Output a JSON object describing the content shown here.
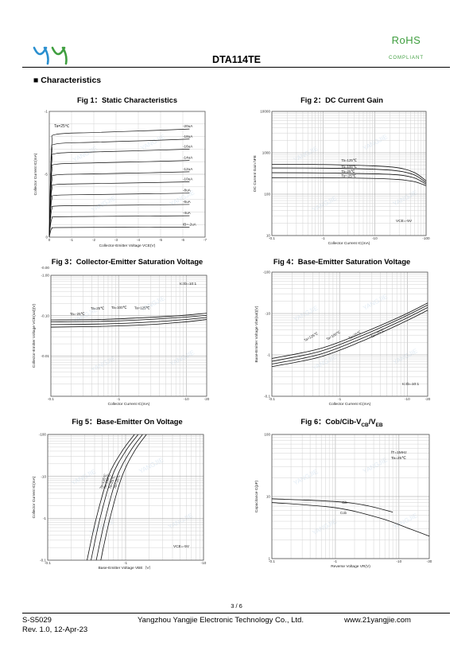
{
  "header": {
    "title": "DTA114TE",
    "rohs": "RoHS",
    "compliant": "COMPLIANT"
  },
  "section_title": "Characteristics",
  "watermark": "YANGJIE",
  "figures": [
    {
      "id": "fig1",
      "title": "Fig 1：Static Characteristics"
    },
    {
      "id": "fig2",
      "title": "Fig 2：DC Current Gain"
    },
    {
      "id": "fig3",
      "title": "Fig 3：Collector-Emitter Saturation Voltage"
    },
    {
      "id": "fig4",
      "title": "Fig 4：Base-Emitter Saturation Voltage"
    },
    {
      "id": "fig5",
      "title": "Fig 5：Base-Emitter On Voltage"
    },
    {
      "id": "fig6",
      "title_main": "Fig 6：Cob/Cib-V",
      "title_sub1": "CB",
      "title_sep": "/V",
      "title_sub2": "EB"
    }
  ],
  "chart_data": [
    {
      "id": "fig1",
      "type": "line",
      "title": "Fig 1：Static Characteristics",
      "xlabel": "Collector-Emitter Voltage   VCE(V)",
      "ylabel": "Collector   Current   IC(mA)",
      "x_ticks": [
        "0",
        "-1",
        "-2",
        "-3",
        "-4",
        "-5",
        "-6",
        "-7"
      ],
      "y_ticks": [
        "0",
        "-5",
        "-1"
      ],
      "annotations": [
        "Ta=25℃"
      ],
      "xlim": [
        0,
        -7
      ],
      "ylim": [
        0,
        -10
      ],
      "grid": true,
      "series": [
        {
          "name": "-20uA",
          "end": -8.6
        },
        {
          "name": "-18uA",
          "end": -7.8
        },
        {
          "name": "-16uA",
          "end": -7.0
        },
        {
          "name": "-14uA",
          "end": -6.1
        },
        {
          "name": "-12uA",
          "end": -5.2
        },
        {
          "name": "-10uA",
          "end": -4.4
        },
        {
          "name": "-8uA",
          "end": -3.5
        },
        {
          "name": "-6uA",
          "end": -2.6
        },
        {
          "name": "-4uA",
          "end": -1.7
        },
        {
          "name": "IB=-2uA",
          "end": -0.8
        }
      ]
    },
    {
      "id": "fig2",
      "type": "line",
      "title": "Fig 2：DC Current Gain",
      "xlabel": "Collector Current   IC(mA)",
      "ylabel": "DC Current Gain   hFE",
      "x_ticks": [
        "-0.1",
        "-1",
        "-10",
        "-100"
      ],
      "y_ticks": [
        "10",
        "100",
        "1000",
        "10000"
      ],
      "annotations": [
        "VCE=-5V"
      ],
      "log_x": true,
      "log_y": true,
      "xlim": [
        -0.1,
        -100
      ],
      "ylim": [
        10,
        10000
      ],
      "grid": true,
      "series": [
        {
          "name": "Ta=125℃",
          "x": [
            -0.1,
            -1,
            -10,
            -30,
            -60,
            -100
          ],
          "y": [
            530,
            520,
            480,
            430,
            330,
            210
          ]
        },
        {
          "name": "Ta=100℃",
          "x": [
            -0.1,
            -1,
            -10,
            -30,
            -60,
            -100
          ],
          "y": [
            430,
            425,
            400,
            360,
            290,
            190
          ]
        },
        {
          "name": "Ta=25℃",
          "x": [
            -0.1,
            -1,
            -10,
            -30,
            -60,
            -100
          ],
          "y": [
            330,
            325,
            310,
            290,
            245,
            175
          ]
        },
        {
          "name": "Ta=-25℃",
          "x": [
            -0.1,
            -1,
            -10,
            -30,
            -60,
            -100
          ],
          "y": [
            250,
            250,
            240,
            225,
            200,
            160
          ]
        }
      ]
    },
    {
      "id": "fig3",
      "type": "line",
      "title": "Fig 3：Collector-Emitter Saturation Voltage",
      "xlabel": "Collector Current   IC(mA)",
      "ylabel": "Collector-Emitter Voltage   VCE(sat)(V)",
      "x_ticks": [
        "-0.1",
        "-1",
        "-10",
        "-20"
      ],
      "y_ticks": [
        "-0.00",
        "-0.01",
        "-0.10",
        "-1.00"
      ],
      "annotations": [
        "Ic:Ib=10:1"
      ],
      "log_x": true,
      "log_y": true,
      "xlim": [
        -0.1,
        -20
      ],
      "ylim": [
        -0.001,
        -1
      ],
      "grid": true,
      "series": [
        {
          "name": "Ta=-25℃",
          "x": [
            -0.1,
            -0.5,
            -2,
            -8,
            -20
          ],
          "y": [
            -0.052,
            -0.054,
            -0.058,
            -0.068,
            -0.08
          ]
        },
        {
          "name": "Ta=25℃",
          "x": [
            -0.1,
            -0.5,
            -2,
            -8,
            -20
          ],
          "y": [
            -0.06,
            -0.062,
            -0.067,
            -0.078,
            -0.09
          ]
        },
        {
          "name": "Ta=100℃",
          "x": [
            -0.1,
            -0.5,
            -2,
            -8,
            -20
          ],
          "y": [
            -0.07,
            -0.072,
            -0.078,
            -0.09,
            -0.102
          ]
        },
        {
          "name": "Ta=125℃",
          "x": [
            -0.1,
            -0.5,
            -2,
            -8,
            -20
          ],
          "y": [
            -0.078,
            -0.08,
            -0.088,
            -0.1,
            -0.115
          ]
        }
      ]
    },
    {
      "id": "fig4",
      "type": "line",
      "title": "Fig 4：Base-Emitter Saturation Voltage",
      "xlabel": "Collector Current   IC(mA)",
      "ylabel": "Base-Emitter Voltage   Vbe(sat)(V)",
      "x_ticks": [
        "-0.1",
        "-1",
        "-10",
        "-20"
      ],
      "y_ticks": [
        "-0.1",
        "-1",
        "-10",
        "-100"
      ],
      "annotations": [
        "Ic:Ib=10:1"
      ],
      "log_x": true,
      "log_y": true,
      "xlim": [
        -0.1,
        -20
      ],
      "ylim": [
        -0.1,
        -100
      ],
      "grid": true,
      "series": [
        {
          "name": "Ta=125℃",
          "x": [
            -0.1,
            -0.5,
            -2,
            -8,
            -20
          ],
          "y": [
            -0.82,
            -1.4,
            -3.2,
            -8.5,
            -18
          ]
        },
        {
          "name": "Ta=100℃",
          "x": [
            -0.1,
            -0.5,
            -2,
            -8,
            -20
          ],
          "y": [
            -0.7,
            -1.2,
            -2.8,
            -7.6,
            -16
          ]
        },
        {
          "name": "Ta=25℃",
          "x": [
            -0.1,
            -0.5,
            -2,
            -8,
            -20
          ],
          "y": [
            -0.6,
            -1.02,
            -2.4,
            -6.6,
            -14
          ]
        },
        {
          "name": "Ta=-25℃",
          "x": [
            -0.1,
            -0.5,
            -2,
            -8,
            -20
          ],
          "y": [
            -0.52,
            -0.88,
            -2.05,
            -5.7,
            -12
          ]
        }
      ]
    },
    {
      "id": "fig5",
      "type": "line",
      "title": "Fig 5：Base-Emitter On Voltage",
      "xlabel": "Base-Emitter Voltage   VBE（V）",
      "ylabel": "Collector Current   IC(mA)",
      "x_ticks": [
        "-0.1",
        "-1",
        "-10"
      ],
      "y_ticks": [
        "-0.1",
        "-1",
        "-10",
        "-100"
      ],
      "annotations": [
        "VCE=-5V"
      ],
      "log_x": true,
      "log_y": true,
      "xlim": [
        -0.1,
        -10
      ],
      "ylim": [
        -0.1,
        -100
      ],
      "grid": true,
      "series": [
        {
          "name": "Ta=125℃",
          "x": [
            -0.32,
            -0.42,
            -0.6,
            -0.9,
            -1.3
          ],
          "y": [
            -0.1,
            -1,
            -10,
            -40,
            -100
          ]
        },
        {
          "name": "Ta=100℃",
          "x": [
            -0.36,
            -0.47,
            -0.67,
            -1.0,
            -1.45
          ],
          "y": [
            -0.1,
            -1,
            -10,
            -40,
            -100
          ]
        },
        {
          "name": "Ta=25℃",
          "x": [
            -0.42,
            -0.55,
            -0.78,
            -1.15,
            -1.65
          ],
          "y": [
            -0.1,
            -1,
            -10,
            -40,
            -100
          ]
        },
        {
          "name": "Ta=-25℃",
          "x": [
            -0.48,
            -0.63,
            -0.9,
            -1.3,
            -1.85
          ],
          "y": [
            -0.1,
            -1,
            -10,
            -40,
            -100
          ]
        }
      ]
    },
    {
      "id": "fig6",
      "type": "line",
      "title": "Fig 6：Cob/Cib-VCB/VEB",
      "xlabel": "Reverse Voltage   VR(V)",
      "ylabel": "Capacitance   C(pF)",
      "x_ticks": [
        "-0.1",
        "-1",
        "-10",
        "-30"
      ],
      "y_ticks": [
        "1",
        "10",
        "100"
      ],
      "annotations": [
        "fT=1MHz",
        "Ta=25℃"
      ],
      "log_x": true,
      "log_y": true,
      "xlim": [
        -0.1,
        -30
      ],
      "ylim": [
        1,
        100
      ],
      "grid": true,
      "series": [
        {
          "name": "Cib",
          "x": [
            -0.1,
            -1,
            -3,
            -8
          ],
          "y": [
            9.2,
            8.3,
            7.2,
            5.6
          ]
        },
        {
          "name": "Cob",
          "x": [
            -0.1,
            -1,
            -5,
            -15,
            -30
          ],
          "y": [
            8.0,
            6.6,
            4.5,
            3.0,
            2.3
          ]
        }
      ]
    }
  ],
  "footer": {
    "page": "3 / 6",
    "doc_id": "S-S5029",
    "revision": "Rev. 1.0, 12-Apr-23",
    "company": "Yangzhou Yangjie Electronic Technology Co., Ltd.",
    "website": "www.21yangjie.com"
  }
}
